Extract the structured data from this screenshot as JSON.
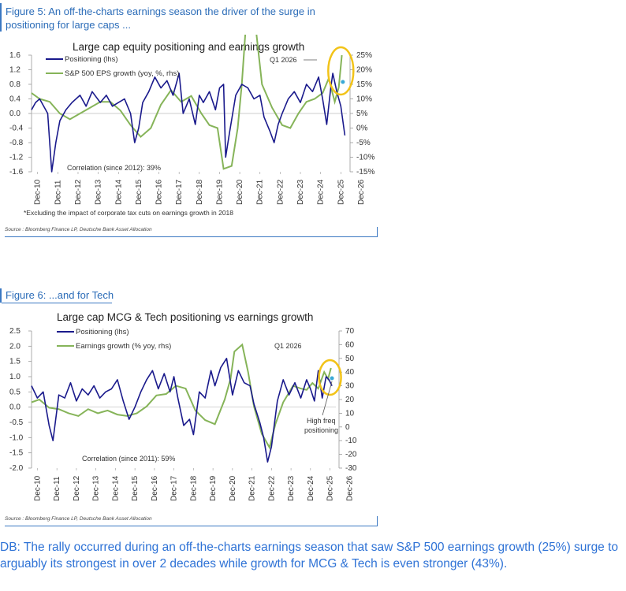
{
  "figures": [
    {
      "heading": "Figure 5: An off-the-charts earnings season the driver of the surge in positioning for large caps ...",
      "source": "Source : Bloomberg Finance LP, Deutsche Bank Asset Allocation",
      "footnote": "*Excluding the impact of corporate tax cuts on earnings growth in 2018"
    },
    {
      "heading": "Figure 6: ...and for Tech",
      "source": "Source : Bloomberg Finance LP, Deutsche Bank Asset Allocation"
    }
  ],
  "caption": "DB: The rally occurred during an off-the-charts earnings season that saw S&P 500 earnings growth (25%) surge to arguably its strongest in over 2 decades while growth for MCG & Tech is even stronger (43%).",
  "colors": {
    "positioning": "#1a1a8c",
    "growth": "#86b459",
    "highlight": "#f2c318",
    "dot": "#3aa9d6",
    "heading": "#2b6cb8"
  },
  "chart_data": [
    {
      "type": "line",
      "title": "Large cap equity positioning and earnings growth",
      "categories": [
        "Dec-10",
        "Dec-11",
        "Dec-12",
        "Dec-13",
        "Dec-14",
        "Dec-15",
        "Dec-16",
        "Dec-17",
        "Dec-18",
        "Dec-19",
        "Dec-20",
        "Dec-21",
        "Dec-22",
        "Dec-23",
        "Dec-24",
        "Dec-25",
        "Dec-26"
      ],
      "ylim_left": [
        -1.6,
        1.6
      ],
      "yticks_left": [
        "1.6",
        "1.2",
        "0.8",
        "0.4",
        "0.0",
        "-0.4",
        "-0.8",
        "-1.2",
        "-1.6"
      ],
      "ylim_right": [
        -15,
        25
      ],
      "yticks_right": [
        "25%",
        "20%",
        "15%",
        "10%",
        "5%",
        "0%",
        "-5%",
        "-10%",
        "-15%"
      ],
      "annotations": [
        "Q1 2026",
        "Correlation (since 2012): 39%"
      ],
      "series": [
        {
          "name": "Positioning (lhs)",
          "axis": "left",
          "x": [
            2010.6,
            2010.8,
            2011.0,
            2011.2,
            2011.4,
            2011.6,
            2011.8,
            2012.0,
            2012.3,
            2012.6,
            2013.0,
            2013.3,
            2013.6,
            2014.0,
            2014.3,
            2014.6,
            2014.9,
            2015.2,
            2015.5,
            2015.7,
            2015.9,
            2016.1,
            2016.4,
            2016.7,
            2017.0,
            2017.3,
            2017.6,
            2017.9,
            2018.1,
            2018.4,
            2018.7,
            2018.9,
            2019.1,
            2019.4,
            2019.7,
            2019.9,
            2020.1,
            2020.2,
            2020.4,
            2020.7,
            2021.0,
            2021.3,
            2021.6,
            2021.9,
            2022.1,
            2022.4,
            2022.6,
            2022.8,
            2023.0,
            2023.3,
            2023.6,
            2023.9,
            2024.2,
            2024.5,
            2024.8,
            2025.0,
            2025.2,
            2025.4,
            2025.5,
            2025.7,
            2025.9,
            2026.1
          ],
          "values": [
            0.1,
            0.3,
            0.4,
            0.2,
            0.0,
            -1.6,
            -0.8,
            -0.2,
            0.1,
            0.3,
            0.5,
            0.2,
            0.6,
            0.3,
            0.5,
            0.2,
            0.3,
            0.4,
            0.0,
            -0.8,
            -0.4,
            0.3,
            0.6,
            1.0,
            0.7,
            0.9,
            0.5,
            1.1,
            0.0,
            0.4,
            -0.3,
            0.5,
            0.3,
            0.6,
            0.1,
            0.7,
            0.8,
            -1.2,
            -0.5,
            0.5,
            0.8,
            0.7,
            0.4,
            0.5,
            -0.1,
            -0.5,
            -0.8,
            -0.3,
            0.0,
            0.4,
            0.6,
            0.3,
            0.8,
            0.6,
            1.0,
            0.4,
            -0.3,
            0.7,
            1.1,
            0.6,
            0.2,
            -0.6
          ]
        },
        {
          "name": "S&P 500 EPS growth (yoy, %, rhs)",
          "axis": "right",
          "x": [
            2010.6,
            2011.0,
            2011.5,
            2012.0,
            2012.5,
            2013.0,
            2013.5,
            2014.0,
            2014.5,
            2015.0,
            2015.5,
            2016.0,
            2016.5,
            2017.0,
            2017.5,
            2018.0,
            2018.5,
            2019.0,
            2019.4,
            2019.8,
            2020.1,
            2020.5,
            2020.8,
            2021.0,
            2021.3,
            2021.6,
            2022.0,
            2022.5,
            2023.0,
            2023.4,
            2023.8,
            2024.2,
            2024.6,
            2025.0,
            2025.3,
            2025.6,
            2025.8,
            2025.95
          ],
          "values": [
            12,
            10,
            9,
            5,
            3,
            5,
            7,
            9,
            9,
            6,
            1,
            -3,
            0,
            8,
            13,
            9,
            11,
            5,
            1,
            0,
            -14,
            -13,
            0,
            15,
            45,
            40,
            15,
            7,
            1,
            0,
            5,
            9,
            10,
            12,
            17,
            9,
            14,
            25
          ]
        }
      ]
    },
    {
      "type": "line",
      "title": "Large cap MCG & Tech positioning vs earnings growth",
      "categories": [
        "Dec-10",
        "Dec-11",
        "Dec-12",
        "Dec-13",
        "Dec-14",
        "Dec-15",
        "Dec-16",
        "Dec-17",
        "Dec-18",
        "Dec-19",
        "Dec-20",
        "Dec-21",
        "Dec-22",
        "Dec-23",
        "Dec-24",
        "Dec-25",
        "Dec-26"
      ],
      "ylim_left": [
        -2.0,
        2.5
      ],
      "yticks_left": [
        "2.5",
        "2.0",
        "1.5",
        "1.0",
        "0.5",
        "0.0",
        "-0.5",
        "-1.0",
        "-1.5",
        "-2.0"
      ],
      "ylim_right": [
        -30,
        70
      ],
      "yticks_right": [
        "70",
        "60",
        "50",
        "40",
        "30",
        "20",
        "10",
        "0",
        "-10",
        "-20",
        "-30"
      ],
      "annotations": [
        "Q1 2026",
        "High freq positioning",
        "Correlation (since 2011): 59%"
      ],
      "series": [
        {
          "name": "Positioning (lhs)",
          "axis": "left",
          "x": [
            2010.6,
            2010.9,
            2011.2,
            2011.5,
            2011.7,
            2012.0,
            2012.3,
            2012.6,
            2012.9,
            2013.2,
            2013.5,
            2013.8,
            2014.1,
            2014.4,
            2014.7,
            2015.0,
            2015.3,
            2015.6,
            2015.9,
            2016.2,
            2016.5,
            2016.8,
            2017.1,
            2017.4,
            2017.7,
            2017.9,
            2018.1,
            2018.4,
            2018.7,
            2018.9,
            2019.2,
            2019.5,
            2019.8,
            2020.0,
            2020.3,
            2020.6,
            2020.9,
            2021.2,
            2021.5,
            2021.8,
            2022.0,
            2022.3,
            2022.5,
            2022.7,
            2022.9,
            2023.2,
            2023.5,
            2023.8,
            2024.1,
            2024.4,
            2024.7,
            2024.9,
            2025.1,
            2025.3,
            2025.5,
            2025.7,
            2025.85,
            2026.0
          ],
          "values": [
            0.7,
            0.3,
            0.5,
            -0.6,
            -1.1,
            0.4,
            0.3,
            0.8,
            0.2,
            0.6,
            0.4,
            0.7,
            0.3,
            0.5,
            0.6,
            0.9,
            0.2,
            -0.4,
            0.0,
            0.5,
            0.9,
            1.2,
            0.6,
            1.1,
            0.5,
            1.0,
            0.3,
            -0.6,
            -0.4,
            -0.9,
            0.5,
            0.3,
            1.2,
            0.7,
            1.3,
            1.6,
            0.4,
            1.2,
            0.8,
            0.7,
            0.1,
            -0.5,
            -1.0,
            -1.8,
            -1.3,
            0.2,
            0.9,
            0.4,
            0.8,
            0.3,
            0.9,
            0.6,
            0.2,
            1.2,
            0.3,
            1.0,
            0.9,
            0.7
          ]
        },
        {
          "name": "Earnings growth (% yoy, rhs)",
          "axis": "right",
          "x": [
            2010.6,
            2011.0,
            2011.5,
            2012.0,
            2012.5,
            2013.0,
            2013.5,
            2014.0,
            2014.5,
            2015.0,
            2015.5,
            2016.0,
            2016.5,
            2017.0,
            2017.5,
            2018.0,
            2018.5,
            2019.0,
            2019.5,
            2020.0,
            2020.5,
            2020.8,
            2021.0,
            2021.4,
            2021.7,
            2022.0,
            2022.4,
            2022.8,
            2023.1,
            2023.5,
            2023.8,
            2024.0,
            2024.4,
            2024.7,
            2025.0,
            2025.3,
            2025.6,
            2025.8,
            2025.95
          ],
          "values": [
            18,
            20,
            14,
            13,
            10,
            8,
            13,
            10,
            12,
            9,
            8,
            10,
            15,
            23,
            24,
            30,
            28,
            12,
            5,
            2,
            20,
            35,
            55,
            60,
            40,
            15,
            -5,
            -15,
            2,
            18,
            25,
            30,
            28,
            27,
            32,
            28,
            40,
            35,
            43
          ]
        }
      ]
    }
  ]
}
